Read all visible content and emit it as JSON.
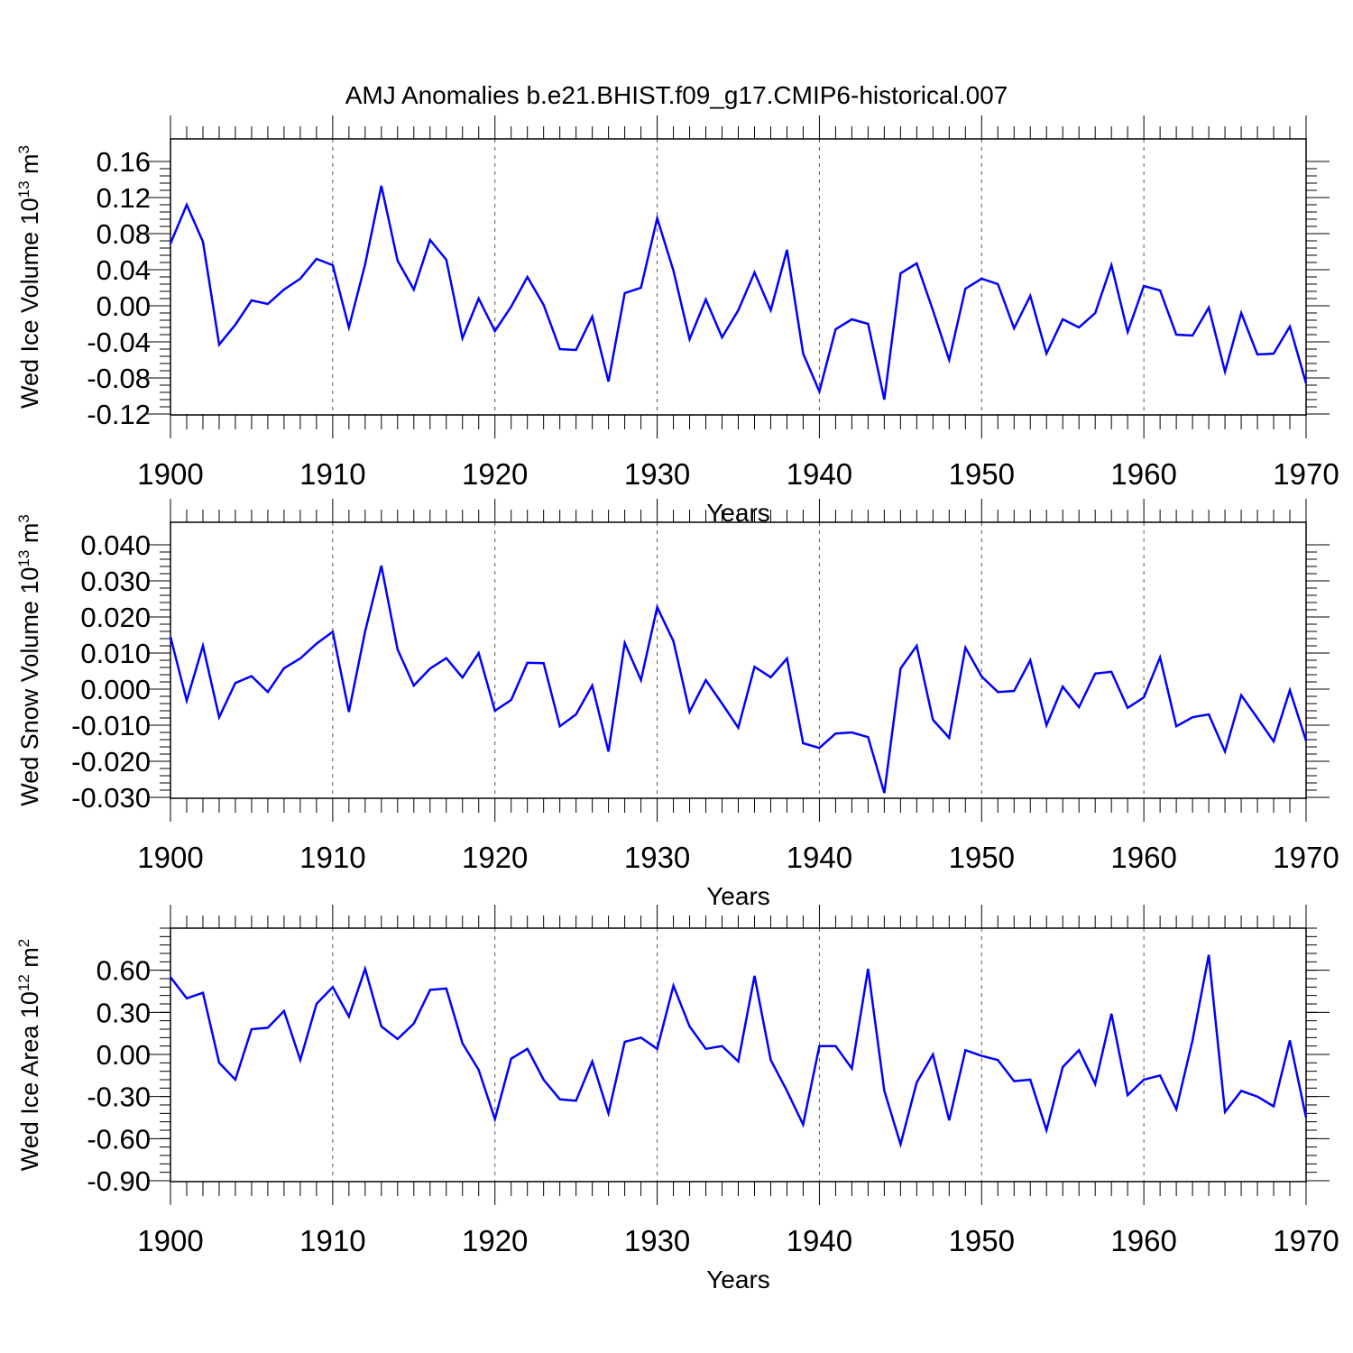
{
  "title": "AMJ Anomalies b.e21.BHIST.f09_g17.CMIP6-historical.007",
  "colors": {
    "series": "#0000ff",
    "axis": "#000000",
    "grid": "#555555"
  },
  "chart_data": [
    {
      "type": "line",
      "ylabel_main": "Wed Ice Volume 10",
      "ylabel_exp": "13",
      "ylabel_unit": " m",
      "ylabel_unit_exp": "3",
      "xlabel": "Years",
      "xlim": [
        1900,
        1970
      ],
      "ylim": [
        -0.12,
        0.16
      ],
      "yticks": [
        -0.12,
        -0.08,
        -0.04,
        0.0,
        0.04,
        0.08,
        0.12,
        0.16
      ],
      "ytick_labels": [
        "-0.12",
        "-0.08",
        "-0.04",
        "0.00",
        "0.04",
        "0.08",
        "0.12",
        "0.16"
      ],
      "xticks": [
        1900,
        1910,
        1920,
        1930,
        1940,
        1950,
        1960,
        1970
      ],
      "xtick_labels": [
        "1900",
        "1910",
        "1920",
        "1930",
        "1940",
        "1950",
        "1960",
        "1970"
      ],
      "grid": "vertical dashed at decades",
      "x": [
        1900,
        1901,
        1902,
        1903,
        1904,
        1905,
        1906,
        1907,
        1908,
        1909,
        1910,
        1911,
        1912,
        1913,
        1914,
        1915,
        1916,
        1917,
        1918,
        1919,
        1920,
        1921,
        1922,
        1923,
        1924,
        1925,
        1926,
        1927,
        1928,
        1929,
        1930,
        1931,
        1932,
        1933,
        1934,
        1935,
        1936,
        1937,
        1938,
        1939,
        1940,
        1941,
        1942,
        1943,
        1944,
        1945,
        1946,
        1947,
        1948,
        1949,
        1950,
        1951,
        1952,
        1953,
        1954,
        1955,
        1956,
        1957,
        1958,
        1959,
        1960,
        1961,
        1962,
        1963,
        1964,
        1965,
        1966,
        1967,
        1968,
        1969,
        1970
      ],
      "y": [
        0.069,
        0.112,
        0.071,
        -0.043,
        -0.021,
        0.006,
        0.002,
        0.018,
        0.03,
        0.052,
        0.045,
        -0.024,
        0.046,
        0.133,
        0.05,
        0.018,
        0.073,
        0.051,
        -0.036,
        0.008,
        -0.028,
        -0.001,
        0.032,
        0.001,
        -0.048,
        -0.049,
        -0.012,
        -0.084,
        0.014,
        0.02,
        0.097,
        0.039,
        -0.037,
        0.007,
        -0.035,
        -0.005,
        0.037,
        -0.005,
        0.062,
        -0.053,
        -0.095,
        -0.026,
        -0.015,
        -0.02,
        -0.104,
        0.036,
        0.047,
        -0.005,
        -0.06,
        0.019,
        0.03,
        0.024,
        -0.025,
        0.011,
        -0.053,
        -0.015,
        -0.024,
        -0.008,
        0.045,
        -0.029,
        0.022,
        0.017,
        -0.032,
        -0.033,
        -0.002,
        -0.073,
        -0.008,
        -0.054,
        -0.053,
        -0.023,
        -0.086
      ]
    },
    {
      "type": "line",
      "ylabel_main": "Wed Snow Volume 10",
      "ylabel_exp": "13",
      "ylabel_unit": " m",
      "ylabel_unit_exp": "3",
      "xlabel": "Years",
      "xlim": [
        1900,
        1970
      ],
      "ylim": [
        -0.03,
        0.04
      ],
      "yticks": [
        -0.03,
        -0.02,
        -0.01,
        0.0,
        0.01,
        0.02,
        0.03,
        0.04
      ],
      "ytick_labels": [
        "-0.030",
        "-0.020",
        "-0.010",
        "0.000",
        "0.010",
        "0.020",
        "0.030",
        "0.040"
      ],
      "xticks": [
        1900,
        1910,
        1920,
        1930,
        1940,
        1950,
        1960,
        1970
      ],
      "xtick_labels": [
        "1900",
        "1910",
        "1920",
        "1930",
        "1940",
        "1950",
        "1960",
        "1970"
      ],
      "grid": "vertical dashed at decades",
      "x": [
        1900,
        1901,
        1902,
        1903,
        1904,
        1905,
        1906,
        1907,
        1908,
        1909,
        1910,
        1911,
        1912,
        1913,
        1914,
        1915,
        1916,
        1917,
        1918,
        1919,
        1920,
        1921,
        1922,
        1923,
        1924,
        1925,
        1926,
        1927,
        1928,
        1929,
        1930,
        1931,
        1932,
        1933,
        1934,
        1935,
        1936,
        1937,
        1938,
        1939,
        1940,
        1941,
        1942,
        1943,
        1944,
        1945,
        1946,
        1947,
        1948,
        1949,
        1950,
        1951,
        1952,
        1953,
        1954,
        1955,
        1956,
        1957,
        1958,
        1959,
        1960,
        1961,
        1962,
        1963,
        1964,
        1965,
        1966,
        1967,
        1968,
        1969,
        1970
      ],
      "y": [
        0.0145,
        -0.0032,
        0.012,
        -0.0078,
        0.0017,
        0.0036,
        -0.0008,
        0.0058,
        0.0085,
        0.0126,
        0.0159,
        -0.0063,
        0.016,
        0.0342,
        0.011,
        0.001,
        0.0057,
        0.0086,
        0.0032,
        0.01,
        -0.006,
        -0.003,
        0.0073,
        0.0072,
        -0.0103,
        -0.007,
        0.001,
        -0.0173,
        0.0128,
        0.0025,
        0.0227,
        0.0133,
        -0.0063,
        0.0025,
        -0.004,
        -0.0107,
        0.0062,
        0.0033,
        0.0085,
        -0.015,
        -0.0163,
        -0.0123,
        -0.012,
        -0.0133,
        -0.0288,
        0.0057,
        0.012,
        -0.0085,
        -0.0135,
        0.0115,
        0.0035,
        -0.0008,
        -0.0005,
        0.008,
        -0.01,
        0.0007,
        -0.005,
        0.0043,
        0.0048,
        -0.0052,
        -0.0023,
        0.0088,
        -0.0103,
        -0.0078,
        -0.007,
        -0.0173,
        -0.0017,
        -0.008,
        -0.0145,
        -0.0003,
        -0.0143
      ]
    },
    {
      "type": "line",
      "ylabel_main": "Wed Ice Area 10",
      "ylabel_exp": "12",
      "ylabel_unit": " m",
      "ylabel_unit_exp": "2",
      "xlabel": "Years",
      "xlim": [
        1900,
        1970
      ],
      "ylim": [
        -0.9,
        0.9
      ],
      "yticks": [
        -0.9,
        -0.6,
        -0.3,
        0.0,
        0.3,
        0.6
      ],
      "ytick_labels": [
        "-0.90",
        "-0.60",
        "-0.30",
        "0.00",
        "0.30",
        "0.60"
      ],
      "xticks": [
        1900,
        1910,
        1920,
        1930,
        1940,
        1950,
        1960,
        1970
      ],
      "xtick_labels": [
        "1900",
        "1910",
        "1920",
        "1930",
        "1940",
        "1950",
        "1960",
        "1970"
      ],
      "grid": "vertical dashed at decades",
      "x": [
        1900,
        1901,
        1902,
        1903,
        1904,
        1905,
        1906,
        1907,
        1908,
        1909,
        1910,
        1911,
        1912,
        1913,
        1914,
        1915,
        1916,
        1917,
        1918,
        1919,
        1920,
        1921,
        1922,
        1923,
        1924,
        1925,
        1926,
        1927,
        1928,
        1929,
        1930,
        1931,
        1932,
        1933,
        1934,
        1935,
        1936,
        1937,
        1938,
        1939,
        1940,
        1941,
        1942,
        1943,
        1944,
        1945,
        1946,
        1947,
        1948,
        1949,
        1950,
        1951,
        1952,
        1953,
        1954,
        1955,
        1956,
        1957,
        1958,
        1959,
        1960,
        1961,
        1962,
        1963,
        1964,
        1965,
        1966,
        1967,
        1968,
        1969,
        1970
      ],
      "y": [
        0.55,
        0.4,
        0.44,
        -0.06,
        -0.18,
        0.18,
        0.19,
        0.31,
        -0.04,
        0.36,
        0.48,
        0.27,
        0.61,
        0.2,
        0.11,
        0.22,
        0.46,
        0.47,
        0.08,
        -0.11,
        -0.46,
        -0.03,
        0.04,
        -0.18,
        -0.32,
        -0.33,
        -0.05,
        -0.42,
        0.09,
        0.12,
        0.04,
        0.49,
        0.2,
        0.04,
        0.06,
        -0.05,
        0.56,
        -0.04,
        -0.26,
        -0.5,
        0.06,
        0.06,
        -0.1,
        0.61,
        -0.26,
        -0.64,
        -0.2,
        0.0,
        -0.47,
        0.03,
        -0.01,
        -0.04,
        -0.19,
        -0.18,
        -0.54,
        -0.09,
        0.03,
        -0.21,
        0.29,
        -0.29,
        -0.18,
        -0.15,
        -0.39,
        0.1,
        0.71,
        -0.41,
        -0.26,
        -0.3,
        -0.37,
        0.1,
        -0.45
      ]
    }
  ]
}
